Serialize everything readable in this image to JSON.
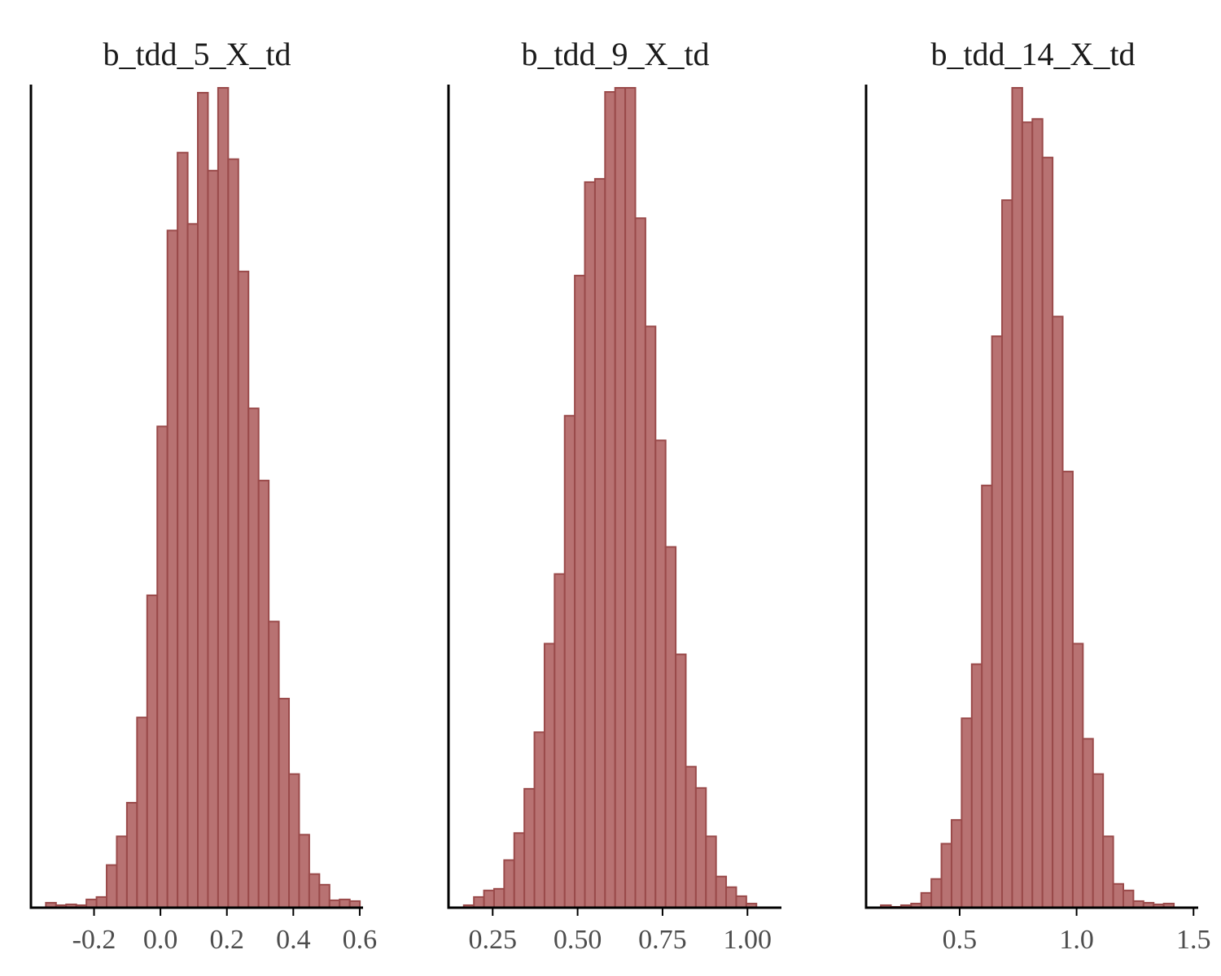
{
  "figure": {
    "colors": {
      "bar_fill": "#b87272",
      "bar_stroke": "#9a4a4a",
      "axis": "#000000",
      "text": "#1a1a1a",
      "tick_text": "#4d4d4d"
    }
  },
  "chart_data": [
    {
      "type": "bar",
      "chart_kind": "histogram",
      "title": "b_tdd_5_X_td",
      "xlabel": "",
      "ylabel": "",
      "y_axis_labels": false,
      "xlim": [
        -0.39,
        0.61
      ],
      "ylim": [
        0,
        1.0
      ],
      "x_ticks": [
        -0.2,
        0.0,
        0.2,
        0.4,
        0.6
      ],
      "x_tick_labels": [
        "-0.2",
        "0.0",
        "0.2",
        "0.4",
        "0.6"
      ],
      "bin_width": 0.0305,
      "bin_start": -0.345,
      "counts_relative": [
        0.006,
        0.003,
        0.004,
        0.003,
        0.01,
        0.013,
        0.052,
        0.087,
        0.128,
        0.232,
        0.381,
        0.587,
        0.826,
        0.921,
        0.834,
        0.994,
        0.899,
        1.0,
        0.913,
        0.776,
        0.609,
        0.521,
        0.349,
        0.255,
        0.163,
        0.089,
        0.041,
        0.028,
        0.009,
        0.01,
        0.008
      ],
      "grid": false
    },
    {
      "type": "bar",
      "chart_kind": "histogram",
      "title": "b_tdd_9_X_td",
      "xlabel": "",
      "ylabel": "",
      "y_axis_labels": false,
      "xlim": [
        0.12,
        1.1
      ],
      "ylim": [
        0,
        1.0
      ],
      "x_ticks": [
        0.25,
        0.5,
        0.75,
        1.0
      ],
      "x_tick_labels": [
        "0.25",
        "0.50",
        "0.75",
        "1.00"
      ],
      "bin_width": 0.0297,
      "bin_start": 0.165,
      "counts_relative": [
        0.003,
        0.013,
        0.021,
        0.023,
        0.058,
        0.091,
        0.145,
        0.214,
        0.322,
        0.407,
        0.6,
        0.771,
        0.885,
        0.889,
        0.995,
        1.0,
        1.0,
        0.841,
        0.709,
        0.57,
        0.44,
        0.309,
        0.172,
        0.146,
        0.087,
        0.038,
        0.025,
        0.014,
        0.005
      ],
      "grid": false
    },
    {
      "type": "bar",
      "chart_kind": "histogram",
      "title": "b_tdd_14_X_td",
      "xlabel": "",
      "ylabel": "",
      "y_axis_labels": false,
      "xlim": [
        0.1,
        1.52
      ],
      "ylim": [
        0,
        1.0
      ],
      "x_ticks": [
        0.5,
        1.0,
        1.5
      ],
      "x_tick_labels": [
        "0.5",
        "1.0",
        "1.5"
      ],
      "bin_width": 0.0432,
      "bin_start": 0.163,
      "counts_relative": [
        0.003,
        0.001,
        0.003,
        0.005,
        0.018,
        0.035,
        0.078,
        0.107,
        0.231,
        0.297,
        0.515,
        0.697,
        0.863,
        1.0,
        0.958,
        0.962,
        0.915,
        0.721,
        0.532,
        0.322,
        0.206,
        0.163,
        0.087,
        0.029,
        0.021,
        0.008,
        0.006,
        0.004,
        0.005
      ],
      "grid": false
    }
  ]
}
